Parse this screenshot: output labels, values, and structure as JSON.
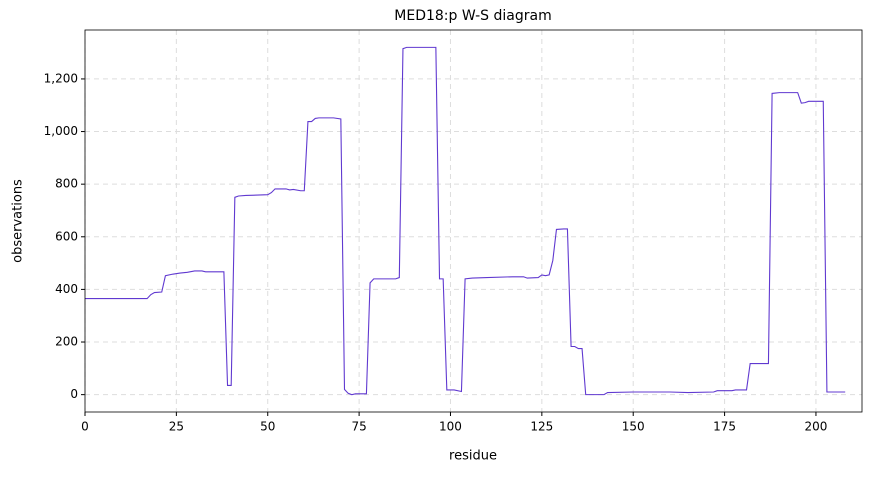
{
  "chart_data": {
    "type": "line",
    "title": "MED18:p W-S diagram",
    "x_label": "residue",
    "y_label": "observations",
    "x": [
      0,
      17,
      18,
      19,
      21,
      22,
      24,
      26,
      28,
      30,
      32,
      33,
      38,
      39,
      40,
      41,
      42,
      44,
      50,
      51,
      52,
      55,
      56,
      57,
      59,
      60,
      61,
      62,
      63,
      64,
      68,
      70,
      71,
      72,
      73,
      74,
      77,
      78,
      79,
      85,
      86,
      87,
      88,
      96,
      97,
      98,
      99,
      101,
      103,
      104,
      106,
      110,
      117,
      120,
      121,
      124,
      125,
      126,
      127,
      128,
      129,
      131,
      132,
      133,
      134,
      135,
      136,
      137,
      142,
      143,
      150,
      160,
      165,
      172,
      173,
      177,
      178,
      181,
      182,
      187,
      188,
      190,
      195,
      196,
      197,
      198,
      202,
      203,
      208
    ],
    "series": [
      {
        "name": "observations",
        "color": "#6039d0",
        "values": [
          365,
          365,
          380,
          388,
          390,
          452,
          458,
          462,
          465,
          470,
          470,
          467,
          467,
          35,
          35,
          750,
          755,
          757,
          760,
          768,
          782,
          782,
          778,
          780,
          775,
          775,
          1038,
          1038,
          1050,
          1052,
          1052,
          1048,
          20,
          5,
          0,
          3,
          3,
          425,
          440,
          440,
          445,
          1315,
          1320,
          1320,
          440,
          440,
          18,
          18,
          12,
          440,
          443,
          445,
          448,
          448,
          443,
          445,
          455,
          452,
          455,
          510,
          628,
          630,
          630,
          183,
          183,
          175,
          175,
          0,
          0,
          8,
          10,
          10,
          8,
          10,
          15,
          15,
          18,
          18,
          118,
          118,
          1145,
          1148,
          1148,
          1108,
          1110,
          1115,
          1115,
          10,
          10
        ]
      }
    ],
    "xlim": [
      0,
      212.6
    ],
    "ylim": [
      -66,
      1386
    ],
    "xticks": [
      0,
      25,
      50,
      75,
      100,
      125,
      150,
      175,
      200
    ],
    "yticks": [
      0,
      200,
      400,
      600,
      800,
      {
        "value": 1000,
        "label": "1,000"
      },
      {
        "value": 1200,
        "label": "1,200"
      }
    ],
    "grid": true
  }
}
